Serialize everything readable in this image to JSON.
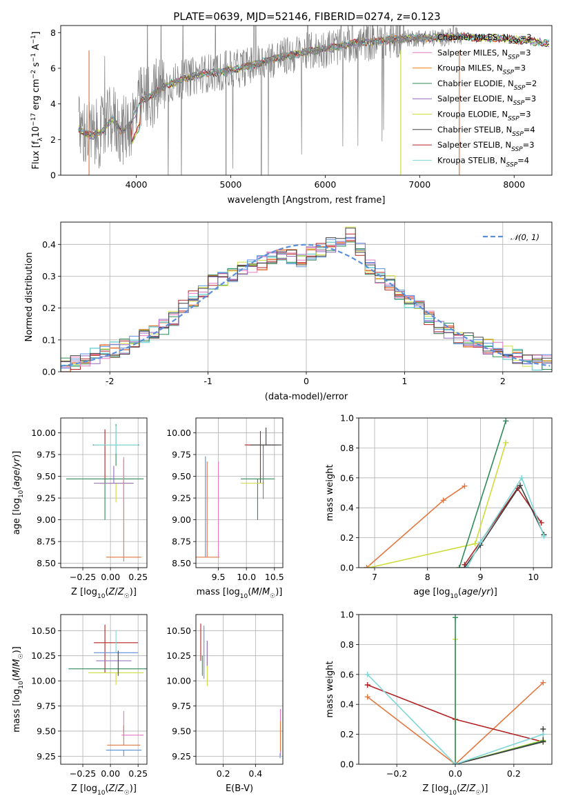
{
  "chart_data": [
    {
      "id": "spectrum",
      "type": "line",
      "title": "PLATE=0639, MJD=52146, FIBERID=0274, z=0.123",
      "xlabel": "wavelength [Angstrom, rest frame]",
      "ylabel": "Flux [f_λ10^-17 erg cm^-2 s^-1 A^-1]",
      "xlim": [
        3200,
        8400
      ],
      "ylim": [
        0,
        8.4
      ],
      "xticks": [
        4000,
        5000,
        6000,
        7000,
        8000
      ],
      "yticks": [
        0,
        2,
        4,
        6,
        8
      ],
      "data_trend": {
        "x": [
          3390,
          3450,
          3550,
          3650,
          3750,
          3850,
          3950,
          4050,
          4150,
          4300,
          4500,
          4700,
          4900,
          5100,
          5300,
          5500,
          5700,
          5900,
          6100,
          6300,
          6500,
          6700,
          6900,
          7000,
          7200,
          7400,
          7600,
          7800,
          8000,
          8200,
          8380
        ],
        "y": [
          2.6,
          2.4,
          2.2,
          2.5,
          3.2,
          2.4,
          3.0,
          4.2,
          4.4,
          5.0,
          5.4,
          5.7,
          5.8,
          6.0,
          6.3,
          6.6,
          6.8,
          7.0,
          7.2,
          7.4,
          7.5,
          7.6,
          7.7,
          7.7,
          7.7,
          7.8,
          7.7,
          7.7,
          7.6,
          7.5,
          7.4
        ]
      },
      "legend_position": "upper right",
      "series": [
        {
          "name": "Chabrier MILES, N_SSP=3",
          "color": "#7f7f7f"
        },
        {
          "name": "Salpeter MILES, N_SSP=3",
          "color": "#e377c2"
        },
        {
          "name": "Kroupa MILES, N_SSP=3",
          "color": "#ff7f0e"
        },
        {
          "name": "Chabrier ELODIE, N_SSP=2",
          "color": "#2e8b57"
        },
        {
          "name": "Salpeter ELODIE, N_SSP=3",
          "color": "#9467bd"
        },
        {
          "name": "Kroupa ELODIE, N_SSP=3",
          "color": "#cddc39"
        },
        {
          "name": "Chabrier STELIB, N_SSP=4",
          "color": "#404040"
        },
        {
          "name": "Salpeter STELIB, N_SSP=3",
          "color": "#b22222"
        },
        {
          "name": "Kroupa STELIB, N_SSP=4",
          "color": "#7fd6d6"
        }
      ]
    },
    {
      "id": "residuals",
      "type": "line",
      "xlabel": "(data-model)/error",
      "ylabel": "Normed distribution",
      "xlim": [
        -2.5,
        2.5
      ],
      "ylim": [
        0,
        0.47
      ],
      "xticks": [
        -2,
        -1,
        0,
        1,
        2
      ],
      "yticks": [
        0.0,
        0.1,
        0.2,
        0.3,
        0.4
      ],
      "legend_label": "𝒩(0, 1)",
      "legend_position": "upper right",
      "grid": true,
      "hist_bins": [
        -2.5,
        -2.4,
        -2.3,
        -2.2,
        -2.1,
        -2.0,
        -1.9,
        -1.8,
        -1.7,
        -1.6,
        -1.5,
        -1.4,
        -1.3,
        -1.2,
        -1.1,
        -1.0,
        -0.9,
        -0.8,
        -0.7,
        -0.6,
        -0.5,
        -0.4,
        -0.3,
        -0.2,
        -0.1,
        0.0,
        0.1,
        0.2,
        0.3,
        0.4,
        0.5,
        0.6,
        0.7,
        0.8,
        0.9,
        1.0,
        1.1,
        1.2,
        1.3,
        1.4,
        1.5,
        1.6,
        1.7,
        1.8,
        1.9,
        2.0,
        2.1,
        2.2,
        2.3,
        2.4,
        2.5
      ],
      "hist_values": [
        0.02,
        0.03,
        0.04,
        0.05,
        0.06,
        0.07,
        0.08,
        0.09,
        0.11,
        0.12,
        0.14,
        0.17,
        0.2,
        0.23,
        0.26,
        0.28,
        0.29,
        0.3,
        0.32,
        0.33,
        0.34,
        0.36,
        0.37,
        0.36,
        0.35,
        0.37,
        0.38,
        0.4,
        0.41,
        0.43,
        0.38,
        0.33,
        0.3,
        0.28,
        0.25,
        0.22,
        0.2,
        0.17,
        0.14,
        0.13,
        0.11,
        0.1,
        0.09,
        0.08,
        0.07,
        0.06,
        0.05,
        0.04,
        0.03,
        0.03
      ]
    },
    {
      "id": "age-vs-z",
      "type": "scatter",
      "xlabel": "Z [log10(Z/Z☉)]",
      "ylabel": "age  [log10(age/yr)]",
      "xlim": [
        -0.45,
        0.33
      ],
      "ylim": [
        8.45,
        10.17
      ],
      "xticks": [
        -0.25,
        0.0,
        0.25
      ],
      "xticklabels": [
        "−0.25",
        "0.00",
        "0.25"
      ],
      "yticks": [
        8.5,
        8.75,
        9.0,
        9.25,
        9.5,
        9.75,
        10.0
      ],
      "yticklabels": [
        "8.50",
        "8.75",
        "9.00",
        "9.25",
        "9.50",
        "9.75",
        "10.00"
      ],
      "errorbars": [
        {
          "x": 0.05,
          "y": 9.86,
          "xerr": 0.21,
          "yerr_lo": 0.24,
          "yerr_hi": 0.24,
          "color": "#2e8b57"
        },
        {
          "x": -0.05,
          "y": 9.86,
          "xerr": 0.0,
          "yerr_lo": 0.44,
          "yerr_hi": 0.18,
          "color": "#b22222"
        },
        {
          "x": 0.05,
          "y": 9.86,
          "xerr": 0.2,
          "yerr_lo": 0.1,
          "yerr_hi": 0.22,
          "color": "#7fd6d6"
        },
        {
          "x": -0.05,
          "y": 9.47,
          "xerr": 0.35,
          "yerr_lo": 0.47,
          "yerr_hi": 0.0,
          "color": "#2e8b57"
        },
        {
          "x": 0.05,
          "y": 9.42,
          "xerr": 0.15,
          "yerr_lo": 0.22,
          "yerr_hi": 0.0,
          "color": "#cddc39"
        },
        {
          "x": 0.03,
          "y": 9.42,
          "xerr": 0.18,
          "yerr_lo": 0.0,
          "yerr_hi": 0.2,
          "color": "#9467bd"
        },
        {
          "x": 0.12,
          "y": 8.57,
          "xerr": 0.16,
          "yerr_lo": 0.05,
          "yerr_hi": 1.12,
          "color": "#e2773f"
        },
        {
          "x": 0.12,
          "y": 9.2,
          "xerr": 0.0,
          "yerr_lo": 0.0,
          "yerr_hi": 0.52,
          "color": "#e377c2"
        }
      ]
    },
    {
      "id": "age-vs-mass",
      "type": "scatter",
      "xlabel": "mass [log10(M/M☉)]",
      "xlim": [
        9.1,
        10.65
      ],
      "ylim": [
        8.45,
        10.17
      ],
      "xticks": [
        9.5,
        10.0,
        10.5
      ],
      "xticklabels": [
        "9.5",
        "10.0",
        "10.5"
      ],
      "yticks": [
        8.5,
        8.75,
        9.0,
        9.25,
        9.5,
        9.75,
        10.0
      ],
      "yticklabels": [
        "8.50",
        "8.75",
        "9.00",
        "9.25",
        "9.50",
        "9.75",
        "10.00"
      ],
      "errorbars": [
        {
          "x": 10.3,
          "y": 9.86,
          "xerr": 0.3,
          "yerr_lo": 0.46,
          "yerr_hi": 0.0,
          "color": "#2e8b57"
        },
        {
          "x": 10.25,
          "y": 9.86,
          "xerr": 0.28,
          "yerr_lo": 0.44,
          "yerr_hi": 0.16,
          "color": "#b22222"
        },
        {
          "x": 10.35,
          "y": 9.86,
          "xerr": 0.28,
          "yerr_lo": 0.0,
          "yerr_hi": 0.2,
          "color": "#404040"
        },
        {
          "x": 10.2,
          "y": 9.47,
          "xerr": 0.3,
          "yerr_lo": 0.47,
          "yerr_hi": 0.0,
          "color": "#2e8b57"
        },
        {
          "x": 10.1,
          "y": 9.42,
          "xerr": 0.2,
          "yerr_lo": 0.0,
          "yerr_hi": 0.0,
          "color": "#cddc39"
        },
        {
          "x": 10.3,
          "y": 9.42,
          "xerr": 0.0,
          "yerr_lo": 0.18,
          "yerr_hi": 0.4,
          "color": "#9467bd"
        },
        {
          "x": 9.3,
          "y": 8.57,
          "xerr": 0.22,
          "yerr_lo": 0.0,
          "yerr_hi": 1.1,
          "color": "#e2773f"
        },
        {
          "x": 9.5,
          "y": 8.57,
          "xerr": 0.0,
          "yerr_lo": 0.0,
          "yerr_hi": 1.1,
          "color": "#e377c2"
        },
        {
          "x": 9.27,
          "y": 8.57,
          "xerr": 0.0,
          "yerr_lo": 0.0,
          "yerr_hi": 1.16,
          "color": "#5b8fdc"
        }
      ]
    },
    {
      "id": "weight-vs-age",
      "type": "line",
      "xlabel": "age  [log10(age/yr)]",
      "ylabel": "mass weight",
      "xlim": [
        6.7,
        10.35
      ],
      "ylim": [
        0,
        1.0
      ],
      "xticks": [
        7,
        8,
        9,
        10
      ],
      "yticks": [
        0.0,
        0.2,
        0.4,
        0.6,
        0.8,
        1.0
      ],
      "grid": true,
      "series": [
        {
          "color": "#e2773f",
          "x": [
            6.85,
            8.3,
            8.7
          ],
          "y": [
            0.0,
            0.45,
            0.545
          ]
        },
        {
          "color": "#cddc39",
          "x": [
            6.9,
            8.9,
            9.48
          ],
          "y": [
            0.0,
            0.16,
            0.835
          ]
        },
        {
          "color": "#2e8b57",
          "x": [
            8.6,
            9.48
          ],
          "y": [
            0.0,
            0.98
          ]
        },
        {
          "color": "#b22222",
          "x": [
            8.7,
            9.7,
            10.15
          ],
          "y": [
            0.02,
            0.53,
            0.3
          ]
        },
        {
          "color": "#404040",
          "x": [
            8.7,
            9.0,
            9.75,
            10.2
          ],
          "y": [
            0.0,
            0.15,
            0.55,
            0.22
          ]
        },
        {
          "color": "#7fd6d6",
          "x": [
            8.75,
            9.0,
            9.78,
            10.2
          ],
          "y": [
            0.0,
            0.17,
            0.6,
            0.21
          ]
        }
      ]
    },
    {
      "id": "mass-vs-z",
      "type": "scatter",
      "xlabel": "Z [log10(Z/Z☉)]",
      "ylabel": "mass [log10(M/M☉)]",
      "xlim": [
        -0.45,
        0.33
      ],
      "ylim": [
        9.17,
        10.66
      ],
      "xticks": [
        -0.25,
        0.0,
        0.25
      ],
      "xticklabels": [
        "−0.25",
        "0.00",
        "0.25"
      ],
      "yticks": [
        9.25,
        9.5,
        9.75,
        10.0,
        10.25,
        10.5
      ],
      "yticklabels": [
        "9.25",
        "9.50",
        "9.75",
        "10.00",
        "10.25",
        "10.50"
      ],
      "errorbars": [
        {
          "x": 0.05,
          "y": 10.38,
          "xerr": 0.2,
          "yerr_lo": 0.0,
          "yerr_hi": 0.0,
          "color": "#b22222"
        },
        {
          "x": -0.05,
          "y": 10.38,
          "xerr": 0.0,
          "yerr_lo": 0.3,
          "yerr_hi": 0.18,
          "color": "#b22222"
        },
        {
          "x": 0.05,
          "y": 10.28,
          "xerr": 0.2,
          "yerr_lo": 0.0,
          "yerr_hi": 0.0,
          "color": "#5b8fdc"
        },
        {
          "x": 0.05,
          "y": 10.28,
          "xerr": 0.0,
          "yerr_lo": 0.0,
          "yerr_hi": 0.22,
          "color": "#7fd6d6"
        },
        {
          "x": 0.03,
          "y": 10.2,
          "xerr": 0.16,
          "yerr_lo": 0.0,
          "yerr_hi": 0.0,
          "color": "#9467bd"
        },
        {
          "x": 0.05,
          "y": 10.12,
          "xerr": 0.43,
          "yerr_lo": 0.0,
          "yerr_hi": 0.0,
          "color": "#2e8b57"
        },
        {
          "x": 0.05,
          "y": 10.08,
          "xerr": 0.25,
          "yerr_lo": 0.12,
          "yerr_hi": 0.0,
          "color": "#cddc39"
        },
        {
          "x": 0.07,
          "y": 10.05,
          "xerr": 0.0,
          "yerr_lo": 0.0,
          "yerr_hi": 0.25,
          "color": "#404040"
        },
        {
          "x": 0.2,
          "y": 9.46,
          "xerr": 0.1,
          "yerr_lo": 0.0,
          "yerr_hi": 0.0,
          "color": "#e377c2"
        },
        {
          "x": 0.12,
          "y": 9.48,
          "xerr": 0.0,
          "yerr_lo": 0.0,
          "yerr_hi": 0.22,
          "color": "#e377c2"
        },
        {
          "x": 0.12,
          "y": 9.36,
          "xerr": 0.15,
          "yerr_lo": 0.0,
          "yerr_hi": 0.2,
          "color": "#e2773f"
        },
        {
          "x": 0.12,
          "y": 9.31,
          "xerr": 0.16,
          "yerr_lo": 0.06,
          "yerr_hi": 0.0,
          "color": "#5b8fdc"
        }
      ]
    },
    {
      "id": "mass-vs-ebv",
      "type": "scatter",
      "xlabel": "E(B-V)",
      "xlim": [
        0.03,
        0.57
      ],
      "ylim": [
        9.17,
        10.66
      ],
      "xticks": [
        0.2,
        0.4
      ],
      "xticklabels": [
        "0.2",
        "0.4"
      ],
      "yticks": [
        9.25,
        9.5,
        9.75,
        10.0,
        10.25,
        10.5
      ],
      "yticklabels": [
        "9.25",
        "9.50",
        "9.75",
        "10.00",
        "10.25",
        "10.50"
      ],
      "errorbars": [
        {
          "x": 0.06,
          "y": 10.4,
          "xerr": 0.0,
          "yerr_lo": 0.2,
          "yerr_hi": 0.17,
          "color": "#b22222"
        },
        {
          "x": 0.08,
          "y": 10.3,
          "xerr": 0.0,
          "yerr_lo": 0.28,
          "yerr_hi": 0.25,
          "color": "#5b8fdc"
        },
        {
          "x": 0.1,
          "y": 10.2,
          "xerr": 0.0,
          "yerr_lo": 0.25,
          "yerr_hi": 0.2,
          "color": "#cddc39"
        },
        {
          "x": 0.1,
          "y": 10.3,
          "xerr": 0.0,
          "yerr_lo": 0.15,
          "yerr_hi": 0.1,
          "color": "#9467bd"
        },
        {
          "x": 0.07,
          "y": 10.05,
          "xerr": 0.0,
          "yerr_lo": 0.0,
          "yerr_hi": 0.2,
          "color": "#2e8b57"
        },
        {
          "x": 0.555,
          "y": 9.45,
          "xerr": 0.0,
          "yerr_lo": 0.2,
          "yerr_hi": 0.27,
          "color": "#e377c2"
        },
        {
          "x": 0.555,
          "y": 9.4,
          "xerr": 0.0,
          "yerr_lo": 0.1,
          "yerr_hi": 0.2,
          "color": "#e2773f"
        },
        {
          "x": 0.553,
          "y": 9.28,
          "xerr": 0.0,
          "yerr_lo": 0.05,
          "yerr_hi": 0.0,
          "color": "#5b8fdc"
        }
      ]
    },
    {
      "id": "weight-vs-z",
      "type": "line",
      "xlabel": "Z [log10(Z/Z☉)]",
      "ylabel": "mass weight",
      "xlim": [
        -0.33,
        0.33
      ],
      "ylim": [
        0,
        1.0
      ],
      "xticks": [
        -0.2,
        0.0,
        0.2
      ],
      "xticklabels": [
        "−0.2",
        "0.0",
        "0.2"
      ],
      "yticks": [
        0.0,
        0.2,
        0.4,
        0.6,
        0.8,
        1.0
      ],
      "grid": true,
      "series": [
        {
          "color": "#e2773f",
          "x": [
            -0.3,
            0.0,
            0.3
          ],
          "y": [
            0.45,
            0.0,
            0.545
          ]
        },
        {
          "color": "#b22222",
          "x": [
            -0.3,
            0.0,
            0.3
          ],
          "y": [
            0.53,
            0.3,
            0.15
          ]
        },
        {
          "color": "#cddc39",
          "x": [
            0.0,
            0.0,
            0.3
          ],
          "y": [
            0.835,
            0.0,
            0.16
          ]
        },
        {
          "color": "#2e8b57",
          "x": [
            0.0,
            0.0,
            0.3
          ],
          "y": [
            0.98,
            0.0,
            0.155
          ]
        },
        {
          "color": "#404040",
          "x": [
            0.0,
            0.3,
            0.3
          ],
          "y": [
            0.0,
            0.15,
            0.235
          ]
        },
        {
          "color": "#7fd6d6",
          "x": [
            -0.3,
            0.0,
            0.3
          ],
          "y": [
            0.6,
            0.0,
            0.2
          ]
        }
      ]
    }
  ]
}
